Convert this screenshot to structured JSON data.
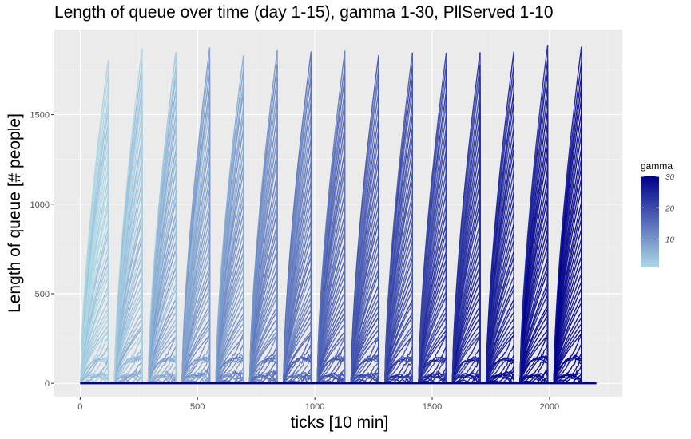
{
  "chart_data": {
    "type": "line",
    "title": "Length of queue over time (day 1-15), gamma 1-30, PllServed 1-10",
    "xlabel": "ticks [10 min]",
    "ylabel": "Length of queue [# people]",
    "xlim": [
      -110,
      2310
    ],
    "ylim": [
      -75,
      1975
    ],
    "x_ticks": [
      0,
      500,
      1000,
      1500,
      2000
    ],
    "x_tick_labels": [
      "0",
      "500",
      "1000",
      "1500",
      "2000"
    ],
    "y_ticks": [
      0,
      500,
      1000,
      1500
    ],
    "y_tick_labels": [
      "0",
      "500",
      "1000",
      "1500"
    ],
    "grid": true,
    "legend": {
      "title": "gamma",
      "position": "right",
      "range": [
        1,
        30
      ],
      "breaks": [
        10,
        20,
        30
      ],
      "break_labels": [
        "10",
        "20",
        "30"
      ],
      "color_low": "#add8e6",
      "color_high": "#00008b"
    },
    "day_length_ticks": 144,
    "day_starts": [
      0,
      144,
      288,
      432,
      576,
      720,
      864,
      1008,
      1152,
      1296,
      1440,
      1584,
      1728,
      1872,
      2016
    ],
    "daily_peak_queue": [
      1790,
      1850,
      1845,
      1865,
      1825,
      1840,
      1850,
      1845,
      1830,
      1840,
      1840,
      1845,
      1840,
      1870,
      1865
    ],
    "series_note": "one line per (gamma, PllServed) run; queue resets to 0 at day boundary",
    "x_extent": [
      0,
      2200
    ]
  }
}
